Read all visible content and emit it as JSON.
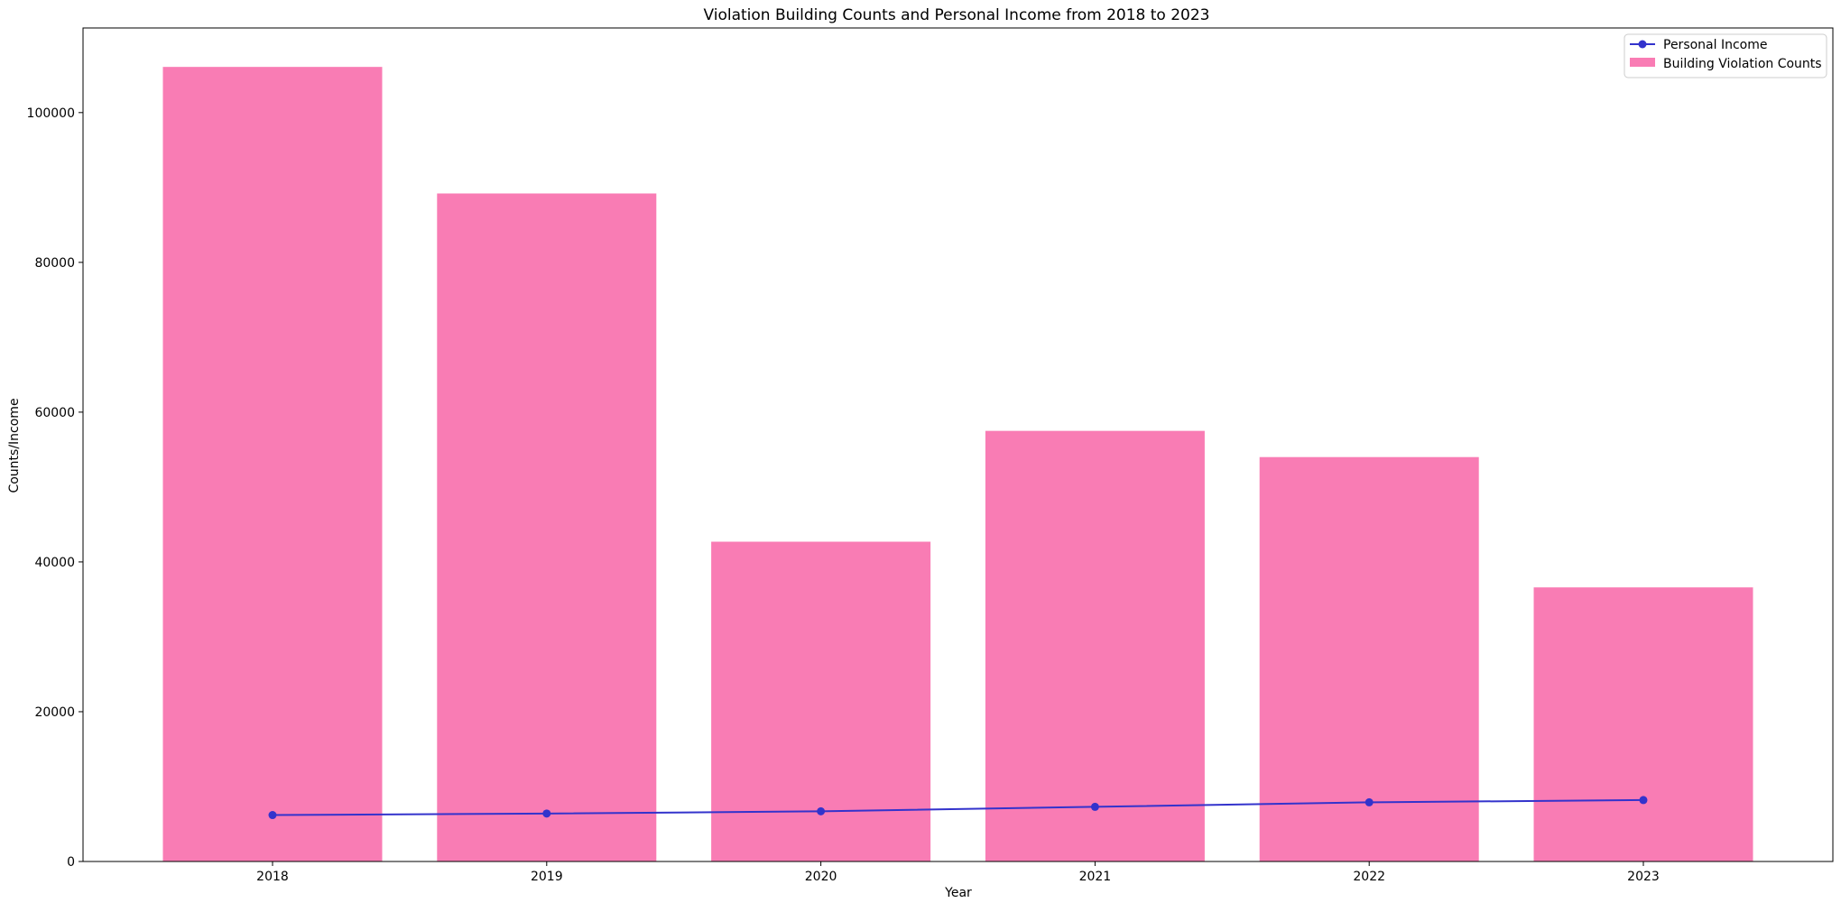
{
  "chart_data": {
    "type": "bar",
    "title": "Violation Building Counts and Personal Income from 2018 to 2023",
    "xlabel": "Year",
    "ylabel": "Counts/Income",
    "categories": [
      "2018",
      "2019",
      "2020",
      "2021",
      "2022",
      "2023"
    ],
    "ylim": [
      0,
      111300
    ],
    "yticks": [
      0,
      20000,
      40000,
      60000,
      80000,
      100000
    ],
    "grid": false,
    "legend_position": "top-right",
    "series": [
      {
        "name": "Building Violation Counts",
        "type": "bar",
        "color": "#f97cb4",
        "values": [
          106100,
          89200,
          42700,
          57500,
          54000,
          36600
        ]
      },
      {
        "name": "Personal Income",
        "type": "line",
        "color": "#3333cc",
        "marker": "circle",
        "values": [
          6200,
          6400,
          6700,
          7300,
          7900,
          8200
        ]
      }
    ]
  }
}
